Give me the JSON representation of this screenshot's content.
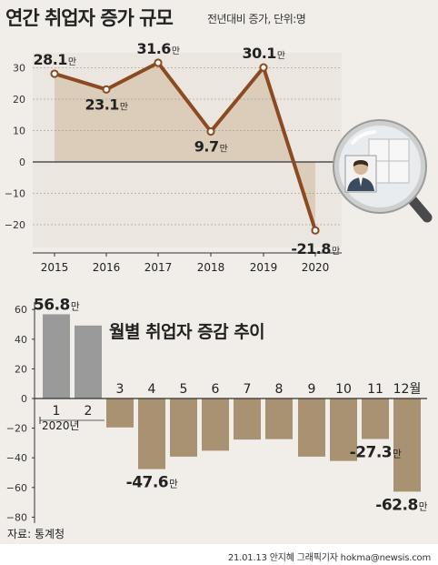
{
  "header": {
    "title": "연간 취업자 증가 규모",
    "subtitle": "전년대비 증가, 단위:명"
  },
  "colors": {
    "line": "#8b4a22",
    "area_fill": "#d9c8b5",
    "gray_bar": "#9a9a9a",
    "tan_bar": "#a89271",
    "text": "#222222"
  },
  "icons": [
    "magnifying-glass-icon",
    "person-icon"
  ],
  "chart_data": [
    {
      "type": "line",
      "title": "연간 취업자 증가 규모",
      "subtitle": "전년대비 증가, 단위:명",
      "x": [
        "2015",
        "2016",
        "2017",
        "2018",
        "2019",
        "2020"
      ],
      "series": [
        {
          "values": [
            28.1,
            23.1,
            31.6,
            9.7,
            30.1,
            -21.8
          ],
          "labels": [
            "28.1만",
            "23.1만",
            "31.6만",
            "9.7만",
            "30.1만",
            "-21.8만"
          ]
        }
      ],
      "ylim": [
        -28,
        35
      ],
      "yticks": [
        30,
        20,
        10,
        0,
        -10,
        -20
      ],
      "ytick_labels": [
        "30",
        "20",
        "10",
        "0",
        "−10",
        "−20"
      ],
      "legend": "none"
    },
    {
      "type": "bar",
      "title": "월별 취업자 증감 추이",
      "categories": [
        "1",
        "2",
        "3",
        "4",
        "5",
        "6",
        "7",
        "8",
        "9",
        "10",
        "11",
        "12월"
      ],
      "category_note": "2020년",
      "values": [
        56.8,
        49.2,
        -19.5,
        -47.6,
        -39.2,
        -35.2,
        -27.7,
        -27.4,
        -39.2,
        -42.1,
        -27.3,
        -62.8
      ],
      "data_labels": {
        "0": "56.8만",
        "3": "-47.6만",
        "10": "-27.3만",
        "11": "-62.8만"
      },
      "ylim": [
        -85,
        65
      ],
      "yticks": [
        60,
        40,
        20,
        0,
        -20,
        -40,
        -60,
        -80
      ],
      "ytick_labels": [
        "60",
        "40",
        "20",
        "0",
        "−20",
        "−40",
        "−60",
        "−80"
      ]
    }
  ],
  "footer": {
    "source": "자료: 통계청",
    "credit": "21.01.13 안지혜 그래픽기자 hokma@newsis.com"
  }
}
